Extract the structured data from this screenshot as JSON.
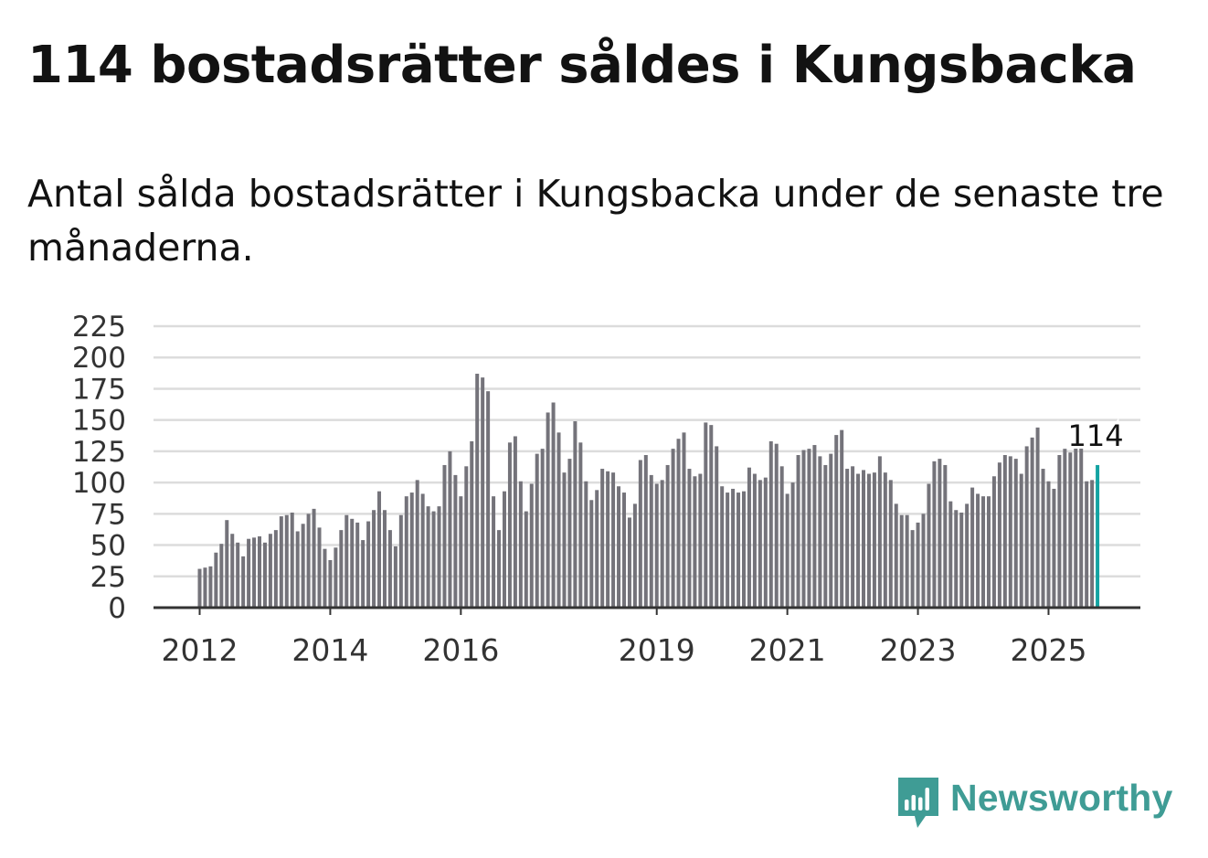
{
  "header": {
    "title": "114 bostadsrätter såldes i Kungsbacka",
    "subtitle": "Antal sålda bostadsrätter i Kungsbacka under de senaste tre månaderna."
  },
  "brand": {
    "name": "Newsworthy",
    "icon": "newsworthy-logo-icon",
    "color": "#3f9c95"
  },
  "chart_data": {
    "type": "bar",
    "title": "114 bostadsrätter såldes i Kungsbacka",
    "subtitle": "Antal sålda bostadsrätter i Kungsbacka under de senaste tre månaderna.",
    "xlabel": "",
    "ylabel": "",
    "ylim": [
      0,
      225
    ],
    "yticks": [
      0,
      25,
      50,
      75,
      100,
      125,
      150,
      175,
      200,
      225
    ],
    "xtick_labels": [
      "2012",
      "2014",
      "2016",
      "2019",
      "2021",
      "2023",
      "2025"
    ],
    "xtick_positions": [
      0,
      24,
      48,
      84,
      108,
      132,
      156
    ],
    "grid": true,
    "bar_color": "#74737a",
    "highlight_color": "#13a3a2",
    "highlight_label": "114",
    "start": "2012-01",
    "values": [
      31,
      32,
      33,
      44,
      51,
      70,
      59,
      52,
      41,
      55,
      56,
      57,
      52,
      59,
      62,
      73,
      74,
      76,
      61,
      67,
      75,
      79,
      64,
      47,
      38,
      48,
      62,
      74,
      71,
      68,
      54,
      69,
      78,
      93,
      78,
      62,
      49,
      74,
      89,
      92,
      102,
      91,
      81,
      77,
      81,
      114,
      125,
      106,
      89,
      113,
      133,
      187,
      184,
      173,
      89,
      62,
      93,
      132,
      137,
      101,
      77,
      99,
      123,
      127,
      156,
      164,
      140,
      108,
      119,
      149,
      132,
      101,
      86,
      94,
      111,
      109,
      108,
      97,
      92,
      72,
      83,
      118,
      122,
      106,
      99,
      102,
      114,
      127,
      135,
      140,
      111,
      105,
      107,
      148,
      146,
      129,
      97,
      92,
      95,
      92,
      93,
      112,
      107,
      102,
      104,
      133,
      131,
      113,
      91,
      100,
      122,
      126,
      127,
      130,
      121,
      114,
      123,
      138,
      142,
      111,
      113,
      107,
      110,
      107,
      108,
      121,
      108,
      102,
      83,
      74,
      74,
      62,
      68,
      75,
      99,
      117,
      119,
      114,
      85,
      78,
      76,
      83,
      96,
      91,
      89,
      89,
      105,
      116,
      122,
      121,
      119,
      107,
      129,
      136,
      144,
      111,
      101,
      95,
      122,
      127,
      124,
      129,
      131,
      101,
      102,
      114
    ]
  }
}
